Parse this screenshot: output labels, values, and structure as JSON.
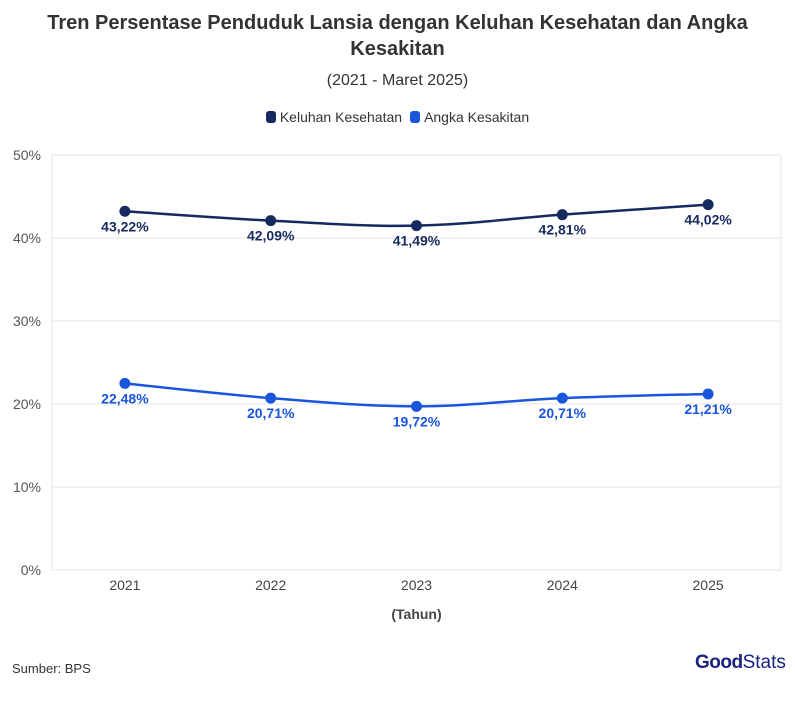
{
  "chart_data": {
    "type": "line",
    "title": "Tren Persentase Penduduk Lansia dengan Keluhan Kesehatan dan Angka Kesakitan",
    "subtitle": "(2021 - Maret 2025)",
    "xlabel": "(Tahun)",
    "ylabel": "",
    "categories": [
      "2021",
      "2022",
      "2023",
      "2024",
      "2025"
    ],
    "ylim": [
      0,
      50
    ],
    "yticks": [
      "0%",
      "10%",
      "20%",
      "30%",
      "40%",
      "50%"
    ],
    "grid": true,
    "legend_position": "top",
    "series": [
      {
        "name": "Keluhan Kesehatan",
        "color": "#172a5f",
        "values": [
          43.22,
          42.09,
          41.49,
          42.81,
          44.02
        ],
        "labels": [
          "43,22%",
          "42,09%",
          "41,49%",
          "42,81%",
          "44,02%"
        ]
      },
      {
        "name": "Angka Kesakitan",
        "color": "#1a56db",
        "values": [
          22.48,
          20.71,
          19.72,
          20.71,
          21.21
        ],
        "labels": [
          "22,48%",
          "20,71%",
          "19,72%",
          "20,71%",
          "21,21%"
        ]
      }
    ]
  },
  "footer": {
    "source": "Sumber: BPS",
    "logo_text": "GoodStats"
  }
}
